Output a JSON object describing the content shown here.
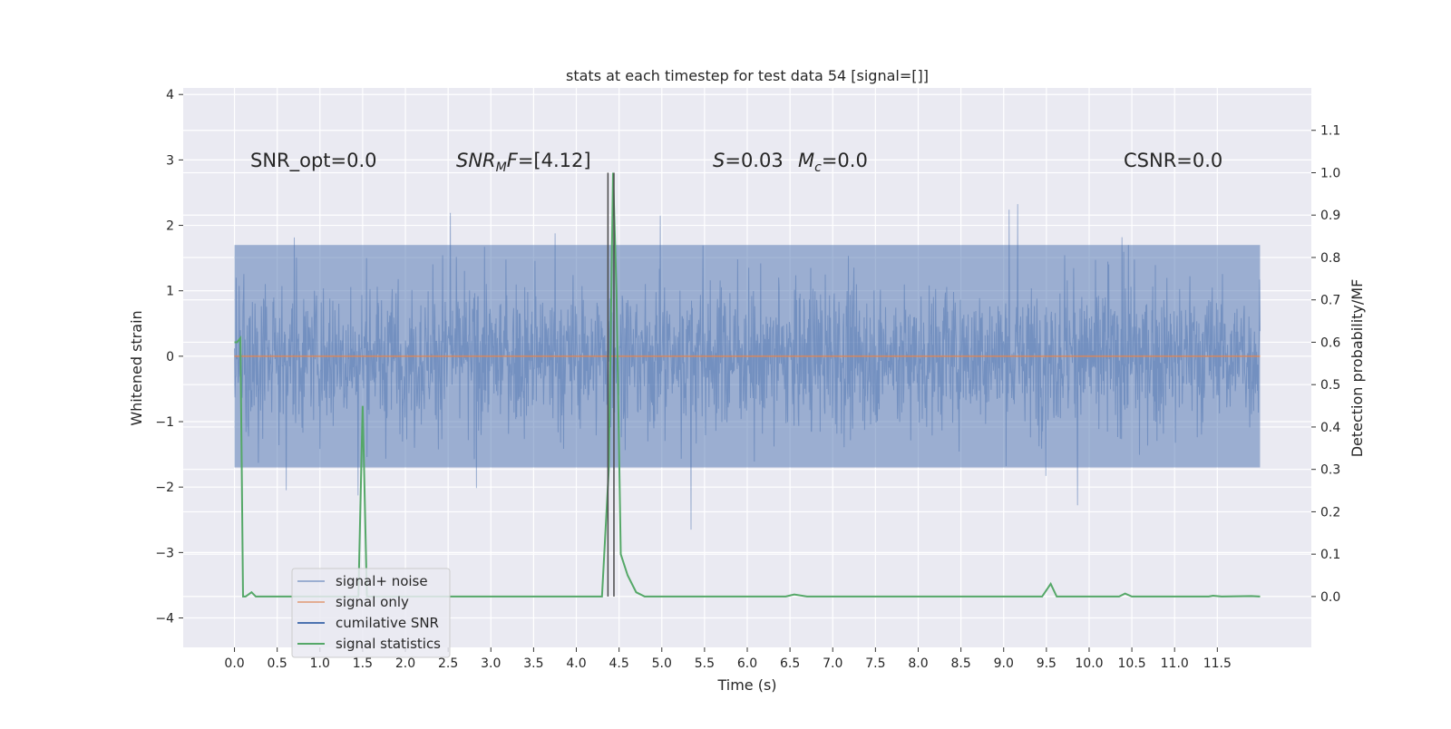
{
  "chart_data": {
    "type": "line",
    "title": "stats at each timestep for test data 54 [signal=[]]",
    "xlabel": "Time (s)",
    "ylabel_left": "Whitened strain",
    "ylabel_right": "Detection probability/MF",
    "xlim": [
      -0.6,
      12.6
    ],
    "ylim_left": [
      -4.45,
      4.1
    ],
    "ylim_right": [
      -0.12,
      1.2
    ],
    "x_ticks": [
      0.0,
      0.5,
      1.0,
      1.5,
      2.0,
      2.5,
      3.0,
      3.5,
      4.0,
      4.5,
      5.0,
      5.5,
      6.0,
      6.5,
      7.0,
      7.5,
      8.0,
      8.5,
      9.0,
      9.5,
      10.0,
      10.5,
      11.0,
      11.5
    ],
    "x_tick_labels": [
      "0.0",
      "0.5",
      "1.0",
      "1.5",
      "2.0",
      "2.5",
      "3.0",
      "3.5",
      "4.0",
      "4.5",
      "5.0",
      "5.5",
      "6.0",
      "6.5",
      "7.0",
      "7.5",
      "8.0",
      "8.5",
      "9.0",
      "9.5",
      "10.0",
      "10.5",
      "11.0",
      "11.5"
    ],
    "y_left_ticks": [
      -4,
      -3,
      -2,
      -1,
      0,
      1,
      2,
      3,
      4
    ],
    "y_left_tick_labels": [
      "−4",
      "−3",
      "−2",
      "−1",
      "0",
      "1",
      "2",
      "3",
      "4"
    ],
    "y_right_ticks": [
      0.0,
      0.1,
      0.2,
      0.3,
      0.4,
      0.5,
      0.6,
      0.7,
      0.8,
      0.9,
      1.0,
      1.1
    ],
    "y_right_tick_labels": [
      "0.0",
      "0.1",
      "0.2",
      "0.3",
      "0.4",
      "0.5",
      "0.6",
      "0.7",
      "0.8",
      "0.9",
      "1.0",
      "1.1"
    ],
    "grid": true,
    "legend_position": "lower-left",
    "series": [
      {
        "name": "signal+ noise",
        "color": "#4c72b0",
        "axis": "left",
        "kind": "noise",
        "x_range": [
          0.0,
          12.0
        ],
        "band": [
          -1.7,
          1.7
        ],
        "max_abs": 4.05
      },
      {
        "name": "signal only",
        "color": "#dd8452",
        "axis": "left",
        "x": [
          0.0,
          12.0
        ],
        "y": [
          0.0,
          0.0
        ]
      },
      {
        "name": "cumilative SNR",
        "color": "#4c72b0",
        "axis": "right",
        "x": [],
        "y": []
      },
      {
        "name": "signal statistics",
        "color": "#55a868",
        "axis": "right",
        "x": [
          0.0,
          0.03,
          0.07,
          0.1,
          0.13,
          0.2,
          0.25,
          0.35,
          0.5,
          1.0,
          1.4,
          1.45,
          1.5,
          1.55,
          1.6,
          2.0,
          3.0,
          4.0,
          4.3,
          4.38,
          4.43,
          4.47,
          4.52,
          4.6,
          4.7,
          4.8,
          5.0,
          6.0,
          6.45,
          6.55,
          6.7,
          7.0,
          8.0,
          9.0,
          9.45,
          9.55,
          9.62,
          10.0,
          10.35,
          10.42,
          10.5,
          11.0,
          11.4,
          11.45,
          11.55,
          11.9,
          12.0
        ],
        "y": [
          0.6,
          0.6,
          0.61,
          0.0,
          0.0,
          0.01,
          0.0,
          0.0,
          0.0,
          0.0,
          0.0,
          0.0,
          0.45,
          0.0,
          0.0,
          0.0,
          0.0,
          0.0,
          0.0,
          0.3,
          1.0,
          0.72,
          0.1,
          0.05,
          0.01,
          0.0,
          0.0,
          0.0,
          0.0,
          0.005,
          0.0,
          0.0,
          0.0,
          0.0,
          0.0,
          0.03,
          0.0,
          0.0,
          0.0,
          0.007,
          0.0,
          0.0,
          0.0,
          0.002,
          0.0,
          0.001,
          0.0
        ]
      }
    ],
    "vertical_lines": [
      {
        "x": 4.37,
        "color": "#4a4a4a"
      },
      {
        "x": 4.44,
        "color": "#4a4a4a"
      }
    ],
    "annotations": [
      {
        "text": "SNR_opt=0.0",
        "x": 0.2,
        "y_right": 1.0
      },
      {
        "text": "SNR_MF=[4.12]",
        "x": 2.6,
        "y_right": 1.0
      },
      {
        "text": "S=0.03",
        "x": 5.6,
        "y_right": 1.0
      },
      {
        "text": "M_c=0.0",
        "x": 6.6,
        "y_right": 1.0
      },
      {
        "text": "CSNR=0.0",
        "x": 10.4,
        "y_right": 1.0
      }
    ]
  }
}
